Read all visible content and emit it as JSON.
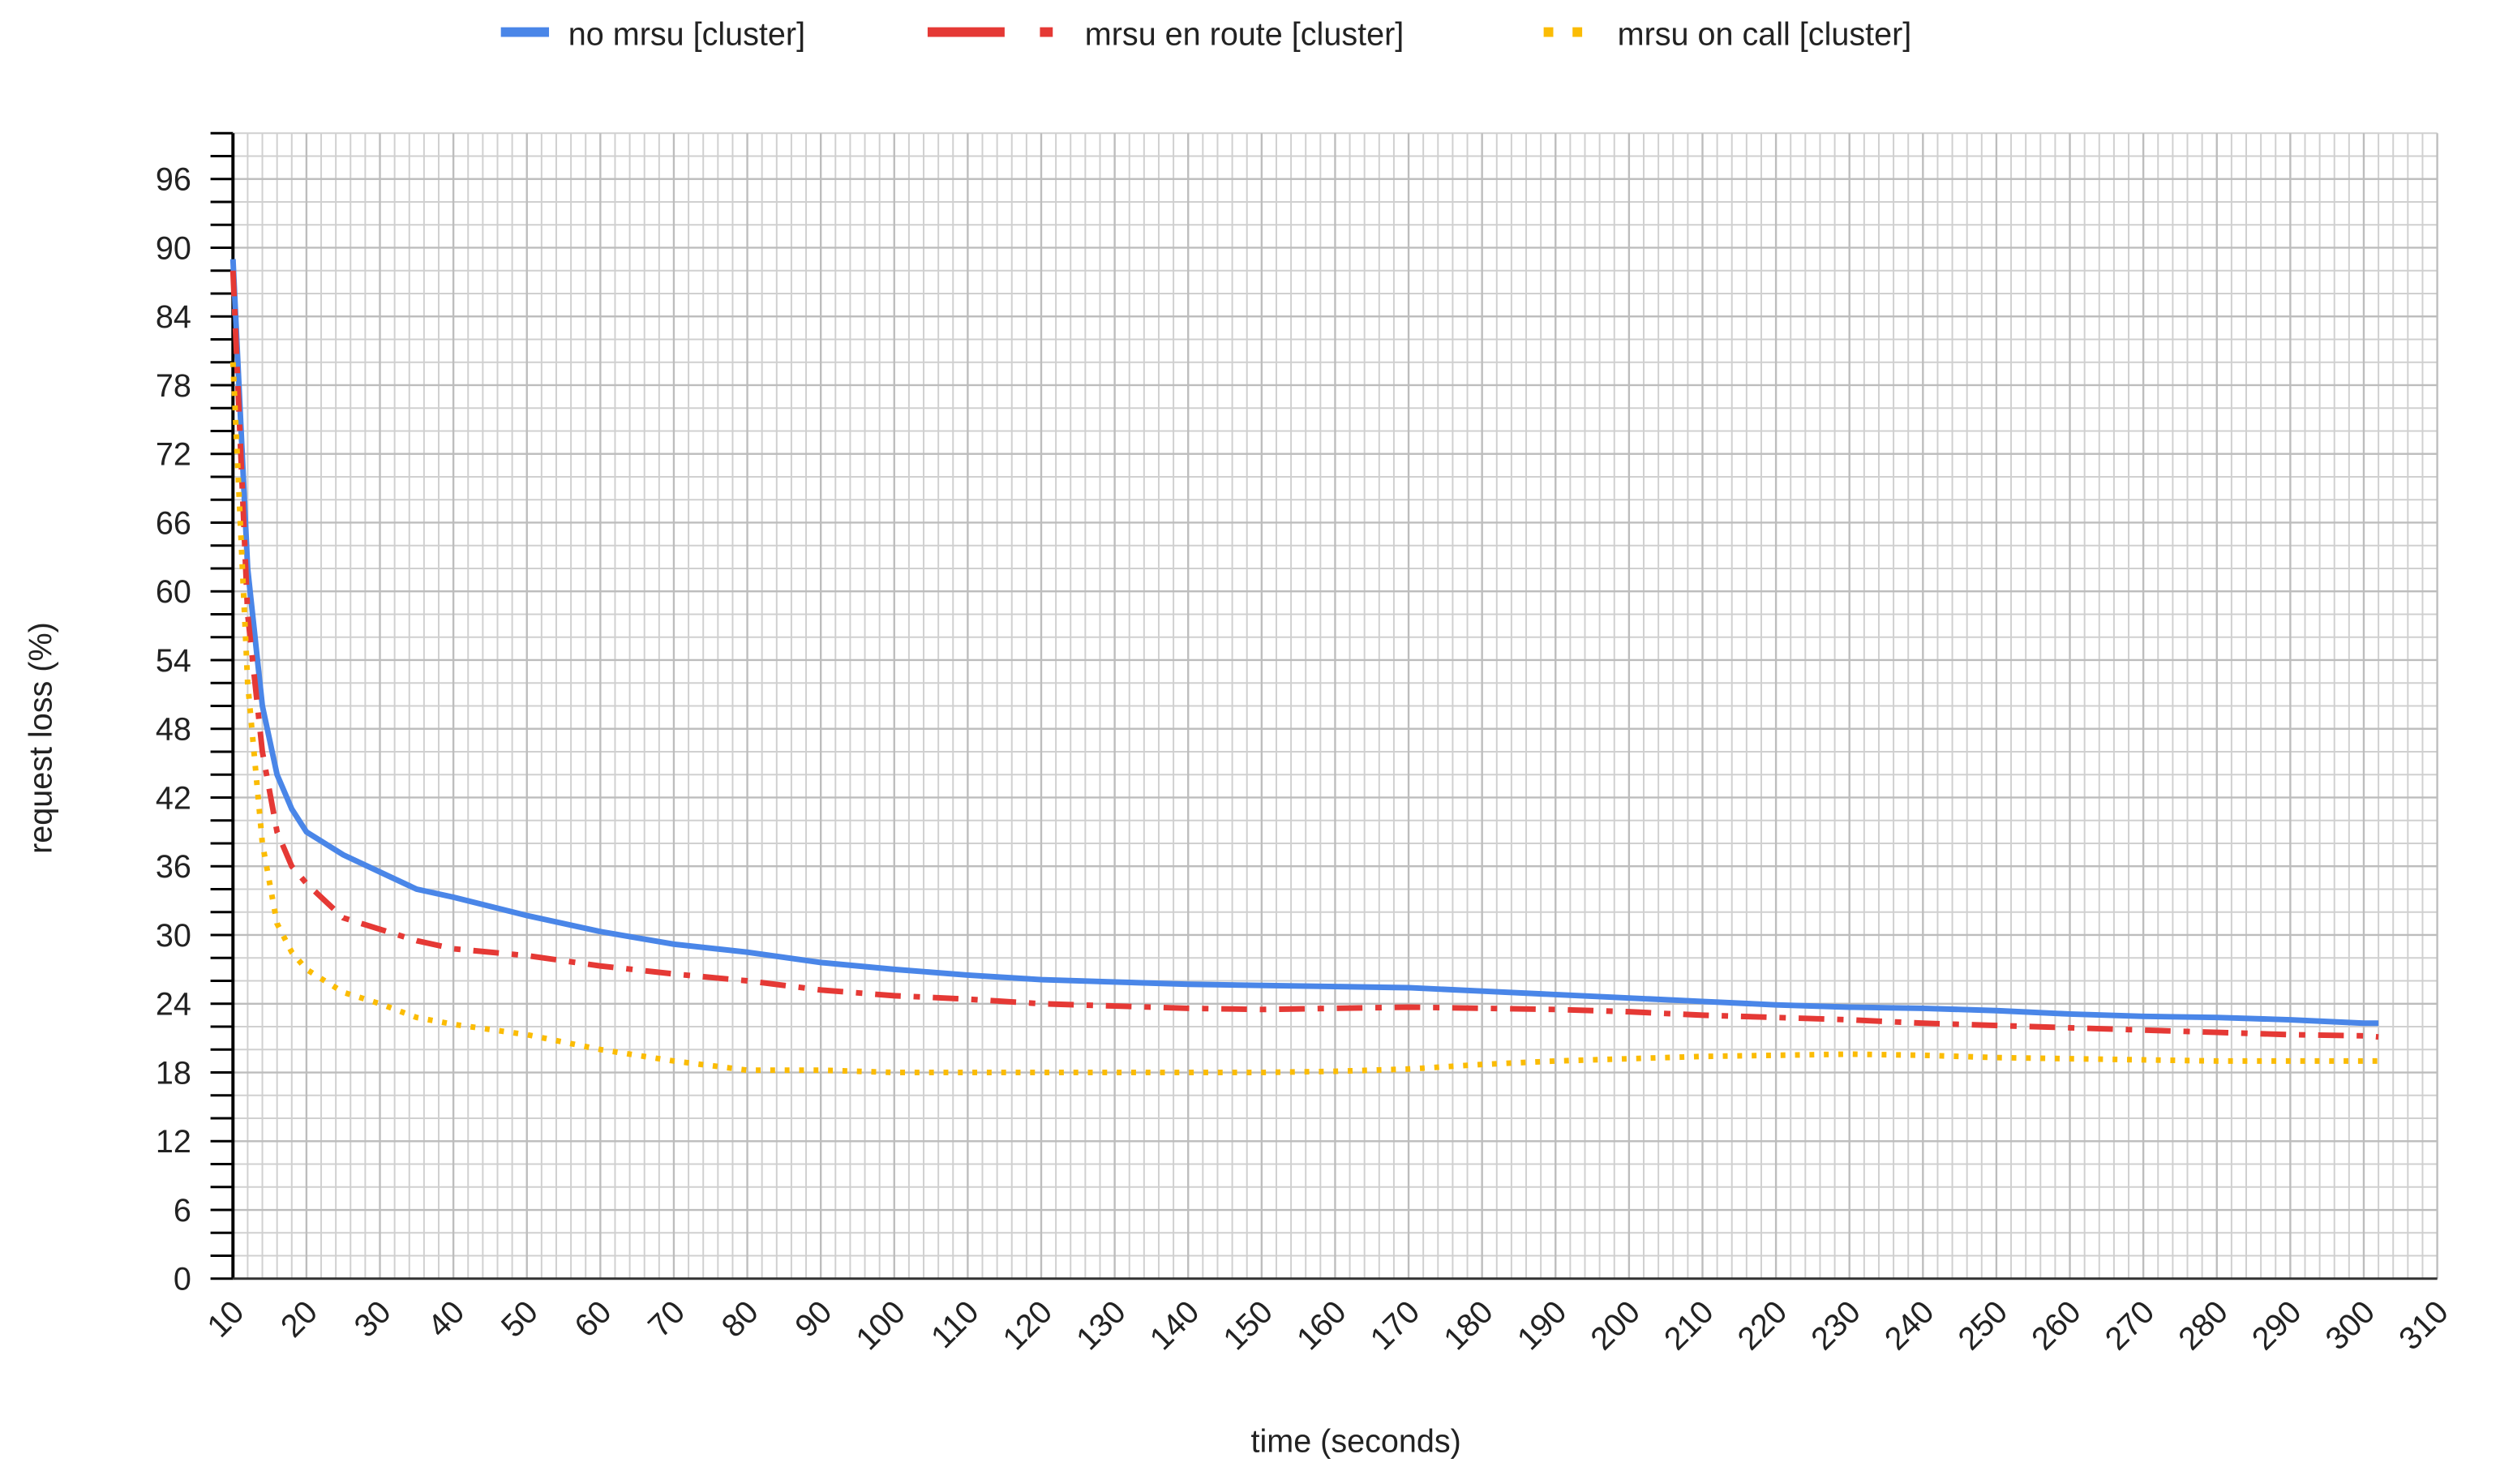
{
  "chart_data": {
    "type": "line",
    "xlabel": "time (seconds)",
    "ylabel": "request loss (%)",
    "x": [
      10,
      12,
      14,
      16,
      18,
      20,
      25,
      30,
      35,
      40,
      50,
      60,
      70,
      80,
      90,
      100,
      110,
      120,
      130,
      140,
      150,
      160,
      170,
      180,
      190,
      200,
      210,
      220,
      230,
      240,
      250,
      260,
      270,
      280,
      290,
      300,
      302
    ],
    "series": [
      {
        "name": "no mrsu [cluster]",
        "color": "#4a86e8",
        "style": "solid",
        "values": [
          89,
          62,
          50,
          44,
          41,
          39,
          37,
          35.5,
          34,
          33.3,
          31.7,
          30.3,
          29.2,
          28.5,
          27.6,
          27,
          26.5,
          26.1,
          25.9,
          25.7,
          25.6,
          25.5,
          25.4,
          25.1,
          24.8,
          24.5,
          24.2,
          23.9,
          23.7,
          23.6,
          23.4,
          23.1,
          22.9,
          22.8,
          22.6,
          22.3,
          22.3
        ]
      },
      {
        "name": "mrsu en route [cluster]",
        "color": "#e53935",
        "style": "dashdot",
        "values": [
          88,
          58,
          46,
          39,
          36,
          34.5,
          31.5,
          30.5,
          29.5,
          28.8,
          28.2,
          27.3,
          26.6,
          26,
          25.2,
          24.7,
          24.4,
          24,
          23.8,
          23.6,
          23.5,
          23.6,
          23.7,
          23.6,
          23.5,
          23.3,
          23,
          22.8,
          22.6,
          22.3,
          22.1,
          21.9,
          21.7,
          21.5,
          21.3,
          21.2,
          21.1
        ]
      },
      {
        "name": "mrsu on call [cluster]",
        "color": "#fbbc04",
        "style": "dotted",
        "values": [
          80,
          52,
          38,
          31,
          28.5,
          27,
          25,
          24,
          22.8,
          22.2,
          21.3,
          20,
          19,
          18.2,
          18.2,
          18,
          18,
          18,
          18,
          18,
          18,
          18.1,
          18.3,
          18.7,
          19,
          19.2,
          19.4,
          19.5,
          19.6,
          19.5,
          19.3,
          19.2,
          19.1,
          19,
          19,
          19,
          19
        ]
      }
    ],
    "xlim": [
      10,
      310
    ],
    "xticks": [
      10,
      20,
      30,
      40,
      50,
      60,
      70,
      80,
      90,
      100,
      110,
      120,
      130,
      140,
      150,
      160,
      170,
      180,
      190,
      200,
      210,
      220,
      230,
      240,
      250,
      260,
      270,
      280,
      290,
      300,
      310
    ],
    "ylim": [
      0,
      100
    ],
    "yticks": [
      0,
      6,
      12,
      18,
      24,
      30,
      36,
      42,
      48,
      54,
      60,
      66,
      72,
      78,
      84,
      90,
      96
    ],
    "grid": true,
    "legend": "top"
  }
}
